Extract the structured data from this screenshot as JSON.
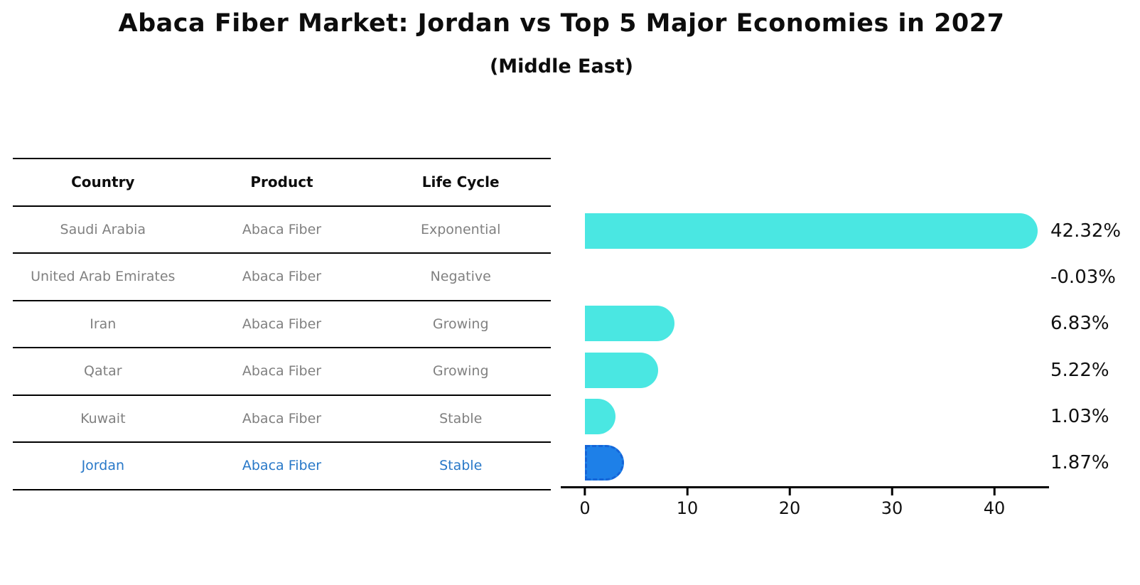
{
  "chart_data": {
    "type": "bar",
    "orientation": "horizontal",
    "title": "Abaca Fiber Market: Jordan vs Top 5 Major Economies in 2027",
    "subtitle": "(Middle East)",
    "categories": [
      "Saudi Arabia",
      "United Arab Emirates",
      "Iran",
      "Qatar",
      "Kuwait",
      "Jordan"
    ],
    "values": [
      42.32,
      -0.03,
      6.83,
      5.22,
      1.03,
      1.87
    ],
    "value_labels": [
      "42.32%",
      "-0.03%",
      "6.83%",
      "5.22%",
      "1.03%",
      "1.87%"
    ],
    "x_ticks": [
      0,
      10,
      20,
      30,
      40
    ],
    "x_tick_labels": [
      "0",
      "10",
      "20",
      "30",
      "40"
    ],
    "xlim": [
      -2.4,
      46
    ],
    "grid": false,
    "legend": false,
    "highlight_index": 5,
    "bar_color": "#4AE7E2",
    "highlight_color": "#1E80E8",
    "highlight_border_color": "#1565D8"
  },
  "table": {
    "columns": [
      "Country",
      "Product",
      "Life Cycle"
    ],
    "rows": [
      {
        "country": "Saudi Arabia",
        "product": "Abaca Fiber",
        "life_cycle": "Exponential",
        "highlight": false
      },
      {
        "country": "United Arab Emirates",
        "product": "Abaca Fiber",
        "life_cycle": "Negative",
        "highlight": false
      },
      {
        "country": "Iran",
        "product": "Abaca Fiber",
        "life_cycle": "Growing",
        "highlight": false
      },
      {
        "country": "Qatar",
        "product": "Abaca Fiber",
        "life_cycle": "Growing",
        "highlight": false
      },
      {
        "country": "Kuwait",
        "product": "Abaca Fiber",
        "life_cycle": "Stable",
        "highlight": false
      },
      {
        "country": "Jordan",
        "product": "Abaca Fiber",
        "life_cycle": "Stable",
        "highlight": true
      }
    ]
  },
  "colors": {
    "text_dark": "#111111",
    "text_gray": "#808080",
    "highlight_text": "#2878C8",
    "line": "#000000"
  }
}
